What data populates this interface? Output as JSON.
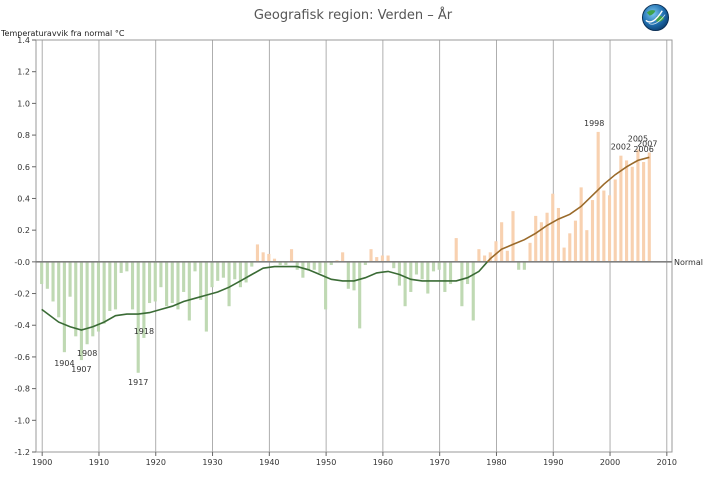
{
  "chart_data": {
    "type": "bar",
    "title": "Geografisk region: Verden – År",
    "ylabel": "Temperaturavvik fra normal °C",
    "xlim": [
      1899,
      2011
    ],
    "ylim": [
      -1.2,
      1.4
    ],
    "x_ticks": [
      1900,
      1910,
      1920,
      1930,
      1940,
      1950,
      1960,
      1970,
      1980,
      1990,
      2000,
      2010
    ],
    "y_ticks": [
      1.4,
      1.2,
      1.0,
      0.8,
      0.6,
      0.4,
      0.2,
      0.0,
      -0.2,
      -0.4,
      -0.6,
      -0.8,
      -1.0,
      -1.2
    ],
    "y_tick_labels": [
      "1.4",
      "1.2",
      "1.0",
      "0.8",
      "0.6",
      "0.4",
      "0.2",
      "-0.0",
      "-0.2",
      "-0.4",
      "-0.6",
      "-0.8",
      "-1.0",
      "-1.2"
    ],
    "reference_line": {
      "value": 0,
      "label": "Normal"
    },
    "grid": true,
    "colors": {
      "negative": "#bfd9b3",
      "positive": "#f8d1b0",
      "smooth_negative": "#3a6b35",
      "smooth_positive": "#9a6a2a",
      "axis": "#808080"
    },
    "years": [
      1900,
      1901,
      1902,
      1903,
      1904,
      1905,
      1906,
      1907,
      1908,
      1909,
      1910,
      1911,
      1912,
      1913,
      1914,
      1915,
      1916,
      1917,
      1918,
      1919,
      1920,
      1921,
      1922,
      1923,
      1924,
      1925,
      1926,
      1927,
      1928,
      1929,
      1930,
      1931,
      1932,
      1933,
      1934,
      1935,
      1936,
      1937,
      1938,
      1939,
      1940,
      1941,
      1942,
      1943,
      1944,
      1945,
      1946,
      1947,
      1948,
      1949,
      1950,
      1951,
      1952,
      1953,
      1954,
      1955,
      1956,
      1957,
      1958,
      1959,
      1960,
      1961,
      1962,
      1963,
      1964,
      1965,
      1966,
      1967,
      1968,
      1969,
      1970,
      1971,
      1972,
      1973,
      1974,
      1975,
      1976,
      1977,
      1978,
      1979,
      1980,
      1981,
      1982,
      1983,
      1984,
      1985,
      1986,
      1987,
      1988,
      1989,
      1990,
      1991,
      1992,
      1993,
      1994,
      1995,
      1996,
      1997,
      1998,
      1999,
      2000,
      2001,
      2002,
      2003,
      2004,
      2005,
      2006,
      2007
    ],
    "values": [
      -0.14,
      -0.17,
      -0.25,
      -0.35,
      -0.57,
      -0.22,
      -0.47,
      -0.62,
      -0.52,
      -0.47,
      -0.44,
      -0.39,
      -0.31,
      -0.3,
      -0.07,
      -0.06,
      -0.3,
      -0.7,
      -0.48,
      -0.26,
      -0.25,
      -0.16,
      -0.28,
      -0.26,
      -0.3,
      -0.19,
      -0.37,
      -0.06,
      -0.24,
      -0.44,
      -0.16,
      -0.12,
      -0.1,
      -0.28,
      -0.11,
      -0.16,
      -0.13,
      -0.03,
      0.11,
      0.06,
      0.05,
      0.02,
      -0.02,
      -0.02,
      0.08,
      -0.05,
      -0.1,
      -0.05,
      -0.05,
      -0.07,
      -0.3,
      -0.02,
      0.01,
      0.06,
      -0.17,
      -0.18,
      -0.42,
      -0.02,
      0.08,
      0.03,
      0.04,
      0.04,
      -0.04,
      -0.15,
      -0.28,
      -0.19,
      -0.08,
      -0.11,
      -0.2,
      -0.06,
      -0.05,
      -0.19,
      -0.14,
      0.15,
      -0.28,
      -0.14,
      -0.37,
      0.08,
      0.04,
      0.06,
      0.13,
      0.25,
      0.07,
      0.32,
      -0.05,
      -0.05,
      0.12,
      0.29,
      0.25,
      0.31,
      0.43,
      0.34,
      0.09,
      0.18,
      0.26,
      0.47,
      0.2,
      0.39,
      0.82,
      0.45,
      0.42,
      0.52,
      0.67,
      0.64,
      0.6,
      0.71,
      0.63,
      0.69
    ],
    "smoothed": [
      [
        1900,
        -0.3
      ],
      [
        1903,
        -0.38
      ],
      [
        1905,
        -0.41
      ],
      [
        1907,
        -0.43
      ],
      [
        1909,
        -0.41
      ],
      [
        1911,
        -0.38
      ],
      [
        1913,
        -0.34
      ],
      [
        1915,
        -0.33
      ],
      [
        1917,
        -0.33
      ],
      [
        1919,
        -0.32
      ],
      [
        1921,
        -0.3
      ],
      [
        1923,
        -0.28
      ],
      [
        1925,
        -0.25
      ],
      [
        1927,
        -0.23
      ],
      [
        1929,
        -0.21
      ],
      [
        1931,
        -0.19
      ],
      [
        1933,
        -0.16
      ],
      [
        1935,
        -0.12
      ],
      [
        1937,
        -0.08
      ],
      [
        1939,
        -0.04
      ],
      [
        1941,
        -0.03
      ],
      [
        1943,
        -0.03
      ],
      [
        1945,
        -0.03
      ],
      [
        1947,
        -0.05
      ],
      [
        1949,
        -0.08
      ],
      [
        1951,
        -0.11
      ],
      [
        1953,
        -0.12
      ],
      [
        1955,
        -0.12
      ],
      [
        1957,
        -0.1
      ],
      [
        1959,
        -0.07
      ],
      [
        1961,
        -0.06
      ],
      [
        1963,
        -0.08
      ],
      [
        1965,
        -0.11
      ],
      [
        1967,
        -0.12
      ],
      [
        1969,
        -0.12
      ],
      [
        1971,
        -0.12
      ],
      [
        1973,
        -0.12
      ],
      [
        1975,
        -0.1
      ],
      [
        1977,
        -0.06
      ],
      [
        1979,
        0.02
      ],
      [
        1981,
        0.08
      ],
      [
        1983,
        0.11
      ],
      [
        1985,
        0.14
      ],
      [
        1987,
        0.18
      ],
      [
        1989,
        0.23
      ],
      [
        1991,
        0.27
      ],
      [
        1993,
        0.3
      ],
      [
        1995,
        0.35
      ],
      [
        1997,
        0.42
      ],
      [
        1999,
        0.49
      ],
      [
        2001,
        0.55
      ],
      [
        2003,
        0.6
      ],
      [
        2005,
        0.64
      ],
      [
        2007,
        0.66
      ]
    ],
    "annotations": [
      {
        "text": "1904",
        "x": 1904,
        "y": -0.57
      },
      {
        "text": "1907",
        "x": 1907,
        "y": -0.62
      },
      {
        "text": "1908",
        "x": 1908,
        "y": -0.52
      },
      {
        "text": "1917",
        "x": 1917,
        "y": -0.7
      },
      {
        "text": "1918",
        "x": 1918,
        "y": -0.48
      },
      {
        "text": "1998",
        "x": 1998,
        "y": 0.82
      },
      {
        "text": "2002",
        "x": 2002,
        "y": 0.67
      },
      {
        "text": "2005",
        "x": 2005,
        "y": 0.71
      },
      {
        "text": "2006",
        "x": 2006,
        "y": 0.63
      },
      {
        "text": "2007",
        "x": 2007,
        "y": 0.69
      }
    ]
  }
}
